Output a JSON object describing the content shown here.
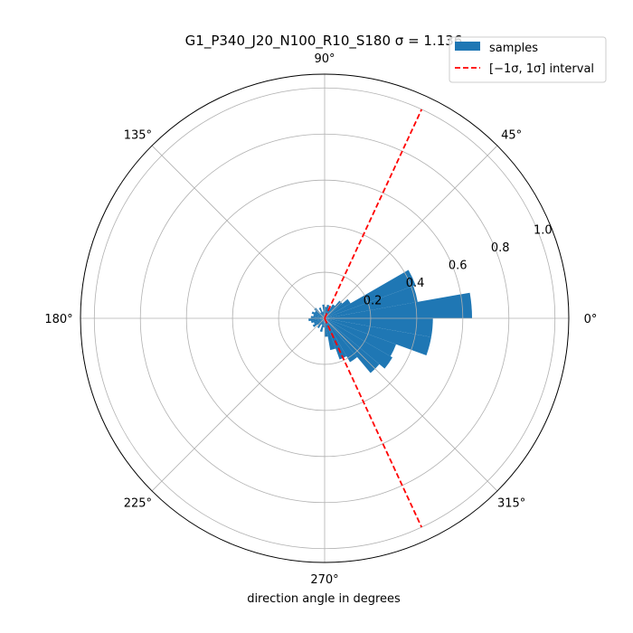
{
  "chart_data": {
    "type": "bar",
    "projection": "polar",
    "title": "G1_P340_J20_N100_R10_S180 σ = 1.136",
    "xlabel": "direction angle in degrees",
    "ylabel": "",
    "angle_ticks": [
      "0°",
      "45°",
      "90°",
      "135°",
      "180°",
      "225°",
      "270°",
      "315°"
    ],
    "radial_ticks": [
      "0.2",
      "0.4",
      "0.6",
      "0.8",
      "1.0"
    ],
    "radial_tick_values": [
      0.2,
      0.4,
      0.6,
      0.8,
      1.0
    ],
    "rlim": [
      0,
      1.06
    ],
    "grid": true,
    "legend": {
      "position": "top-right",
      "entries": [
        {
          "label": "samples",
          "kind": "patch",
          "color": "#1f77b4"
        },
        {
          "label": "[−1σ, 1σ] interval",
          "kind": "dashed-line",
          "color": "#ff0000"
        }
      ]
    },
    "series": [
      {
        "name": "samples",
        "color": "#1f77b4",
        "bin_width_deg": 10,
        "angles_deg": [
          5,
          15,
          25,
          35,
          45,
          55,
          65,
          75,
          85,
          95,
          105,
          115,
          125,
          135,
          145,
          155,
          165,
          175,
          185,
          195,
          205,
          215,
          225,
          235,
          245,
          255,
          265,
          275,
          285,
          295,
          305,
          315,
          325,
          335,
          345,
          355
        ],
        "values": [
          0.64,
          0.41,
          0.42,
          0.13,
          0.1,
          0.07,
          0.04,
          0.06,
          0.05,
          0.06,
          0.03,
          0.05,
          0.03,
          0.06,
          0.05,
          0.06,
          0.05,
          0.06,
          0.07,
          0.06,
          0.05,
          0.06,
          0.04,
          0.05,
          0.03,
          0.06,
          0.04,
          0.08,
          0.14,
          0.19,
          0.22,
          0.31,
          0.34,
          0.33,
          0.47,
          0.47
        ]
      }
    ],
    "interval": {
      "name": "[−1σ, 1σ] interval",
      "color": "#ff0000",
      "angles_deg": [
        65.1,
        -65.1
      ],
      "r_max": 1.0
    }
  }
}
